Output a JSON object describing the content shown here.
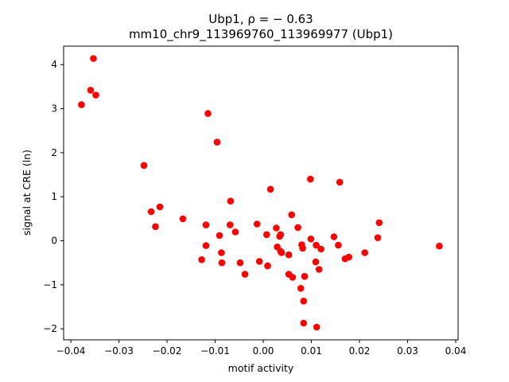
{
  "chart_data": {
    "type": "scatter",
    "title_line1": "Ubp1, ρ = − 0.63",
    "title_line2": "mm10_chr9_113969760_113969977 (Ubp1)",
    "xlabel": "motif activity",
    "ylabel": "signal at CRE (ln)",
    "xlim": [
      -0.0415,
      0.0405
    ],
    "ylim": [
      -2.25,
      4.42
    ],
    "xticks": [
      -0.04,
      -0.03,
      -0.02,
      -0.01,
      0.0,
      0.01,
      0.02,
      0.03,
      0.04
    ],
    "xtick_labels": [
      "−0.04",
      "−0.03",
      "−0.02",
      "−0.01",
      "0.00",
      "0.01",
      "0.02",
      "0.03",
      "0.04"
    ],
    "yticks": [
      -2,
      -1,
      0,
      1,
      2,
      3,
      4
    ],
    "ytick_labels": [
      "−2",
      "−1",
      "0",
      "1",
      "2",
      "3",
      "4"
    ],
    "grid": false,
    "marker_color": "#ff0000",
    "points": [
      {
        "x": -0.0378,
        "y": 3.09
      },
      {
        "x": -0.0359,
        "y": 3.42
      },
      {
        "x": -0.0353,
        "y": 4.14
      },
      {
        "x": -0.0348,
        "y": 3.31
      },
      {
        "x": -0.0248,
        "y": 1.71
      },
      {
        "x": -0.0233,
        "y": 0.66
      },
      {
        "x": -0.0224,
        "y": 0.32
      },
      {
        "x": -0.0215,
        "y": 0.77
      },
      {
        "x": -0.0167,
        "y": 0.5
      },
      {
        "x": -0.0128,
        "y": -0.43
      },
      {
        "x": -0.0119,
        "y": 0.36
      },
      {
        "x": -0.0119,
        "y": -0.11
      },
      {
        "x": -0.0115,
        "y": 2.89
      },
      {
        "x": -0.0096,
        "y": 2.24
      },
      {
        "x": -0.0091,
        "y": 0.12
      },
      {
        "x": -0.0087,
        "y": -0.27
      },
      {
        "x": -0.0086,
        "y": -0.5
      },
      {
        "x": -0.0068,
        "y": 0.9
      },
      {
        "x": -0.0069,
        "y": 0.36
      },
      {
        "x": -0.0058,
        "y": 0.2
      },
      {
        "x": -0.0048,
        "y": -0.5
      },
      {
        "x": -0.0038,
        "y": -0.76
      },
      {
        "x": -0.0013,
        "y": 0.38
      },
      {
        "x": -0.0008,
        "y": -0.47
      },
      {
        "x": 0.0007,
        "y": 0.14
      },
      {
        "x": 0.0009,
        "y": -0.57
      },
      {
        "x": 0.0015,
        "y": 1.17
      },
      {
        "x": 0.0027,
        "y": 0.29
      },
      {
        "x": 0.0029,
        "y": -0.14
      },
      {
        "x": 0.0034,
        "y": 0.1
      },
      {
        "x": 0.0036,
        "y": 0.14
      },
      {
        "x": 0.0036,
        "y": -0.24
      },
      {
        "x": 0.0038,
        "y": -0.27
      },
      {
        "x": 0.0053,
        "y": -0.32
      },
      {
        "x": 0.0053,
        "y": -0.76
      },
      {
        "x": 0.0059,
        "y": 0.59
      },
      {
        "x": 0.0061,
        "y": -0.83
      },
      {
        "x": 0.0072,
        "y": 0.3
      },
      {
        "x": 0.0078,
        "y": -1.08
      },
      {
        "x": 0.008,
        "y": -0.09
      },
      {
        "x": 0.0082,
        "y": -0.17
      },
      {
        "x": 0.0084,
        "y": -1.37
      },
      {
        "x": 0.0084,
        "y": -1.87
      },
      {
        "x": 0.0086,
        "y": -0.81
      },
      {
        "x": 0.0098,
        "y": 1.4
      },
      {
        "x": 0.0099,
        "y": 0.04
      },
      {
        "x": 0.0109,
        "y": -0.48
      },
      {
        "x": 0.011,
        "y": -0.1
      },
      {
        "x": 0.0111,
        "y": -1.96
      },
      {
        "x": 0.0116,
        "y": -0.65
      },
      {
        "x": 0.012,
        "y": -0.19
      },
      {
        "x": 0.0147,
        "y": 0.09
      },
      {
        "x": 0.0156,
        "y": -0.1
      },
      {
        "x": 0.0159,
        "y": 1.33
      },
      {
        "x": 0.017,
        "y": -0.41
      },
      {
        "x": 0.0178,
        "y": -0.37
      },
      {
        "x": 0.0211,
        "y": -0.27
      },
      {
        "x": 0.0238,
        "y": 0.07
      },
      {
        "x": 0.0241,
        "y": 0.41
      },
      {
        "x": 0.0366,
        "y": -0.12
      }
    ]
  }
}
